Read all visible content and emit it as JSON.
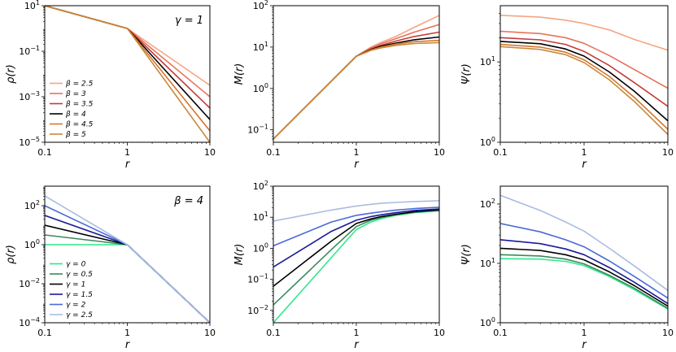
{
  "chart_data": [
    {
      "type": "line",
      "panel": "top-left",
      "xlabel": "r",
      "ylabel": "ρ(r)",
      "xscale": "log",
      "yscale": "log",
      "xlim": [
        0.1,
        10
      ],
      "ylim": [
        1e-05,
        10
      ],
      "xticks": [
        {
          "v": 0.1,
          "label": "0.1"
        },
        {
          "v": 1,
          "label": "1"
        },
        {
          "v": 10,
          "label": "10"
        }
      ],
      "yticks": [
        {
          "v": 1e-05,
          "base": "10",
          "exp": "−5"
        },
        {
          "v": 0.001,
          "base": "10",
          "exp": "−3"
        },
        {
          "v": 0.1,
          "base": "10",
          "exp": "−1"
        },
        {
          "v": 10,
          "base": "10",
          "exp": "1"
        }
      ],
      "annotation": "γ = 1",
      "legend_position": "lower-left",
      "series": [
        {
          "name": "β = 2.5",
          "color": "#f4a582",
          "x": [
            0.1,
            1,
            10
          ],
          "y": [
            10,
            1,
            0.0032
          ]
        },
        {
          "name": "β = 3",
          "color": "#e8735a",
          "x": [
            0.1,
            1,
            10
          ],
          "y": [
            10,
            1,
            0.001
          ]
        },
        {
          "name": "β = 3.5",
          "color": "#c43c3c",
          "x": [
            0.1,
            1,
            10
          ],
          "y": [
            10,
            1,
            0.00032
          ]
        },
        {
          "name": "β = 4",
          "color": "#000000",
          "x": [
            0.1,
            1,
            10
          ],
          "y": [
            10,
            1,
            0.0001
          ]
        },
        {
          "name": "β = 4.5",
          "color": "#d4762c",
          "x": [
            0.1,
            1,
            10
          ],
          "y": [
            10,
            1,
            3.2e-05
          ]
        },
        {
          "name": "β = 5",
          "color": "#c8893c",
          "x": [
            0.1,
            1,
            10
          ],
          "y": [
            10,
            1,
            1e-05
          ]
        }
      ]
    },
    {
      "type": "line",
      "panel": "top-middle",
      "xlabel": "r",
      "ylabel": "M(r)",
      "xscale": "log",
      "yscale": "log",
      "xlim": [
        0.1,
        10
      ],
      "ylim": [
        0.05,
        100
      ],
      "xticks": [
        {
          "v": 0.1,
          "label": "0.1"
        },
        {
          "v": 1,
          "label": "1"
        },
        {
          "v": 10,
          "label": "10"
        }
      ],
      "yticks": [
        {
          "v": 0.1,
          "base": "10",
          "exp": "−1"
        },
        {
          "v": 1,
          "base": "10",
          "exp": "0"
        },
        {
          "v": 10,
          "base": "10",
          "exp": "1"
        },
        {
          "v": 100,
          "base": "10",
          "exp": "2"
        }
      ],
      "series": [
        {
          "name": "β = 2.5",
          "color": "#f4a582",
          "x": [
            0.1,
            0.5,
            1,
            1.5,
            2,
            3,
            5,
            10
          ],
          "y": [
            0.06,
            1.5,
            6.0,
            10.0,
            13.0,
            18.0,
            30.0,
            58.0
          ]
        },
        {
          "name": "β = 3",
          "color": "#e8735a",
          "x": [
            0.1,
            0.5,
            1,
            1.5,
            2,
            3,
            5,
            10
          ],
          "y": [
            0.06,
            1.5,
            6.0,
            9.5,
            12.0,
            16.0,
            23.0,
            35.0
          ]
        },
        {
          "name": "β = 3.5",
          "color": "#c43c3c",
          "x": [
            0.1,
            0.5,
            1,
            1.5,
            2,
            3,
            5,
            10
          ],
          "y": [
            0.06,
            1.5,
            6.0,
            9.0,
            11.0,
            14.0,
            18.0,
            23.0
          ]
        },
        {
          "name": "β = 4",
          "color": "#000000",
          "x": [
            0.1,
            0.5,
            1,
            1.5,
            2,
            3,
            5,
            10
          ],
          "y": [
            0.06,
            1.5,
            6.0,
            8.7,
            10.5,
            12.5,
            15.0,
            17.5
          ]
        },
        {
          "name": "β = 4.5",
          "color": "#d4762c",
          "x": [
            0.1,
            0.5,
            1,
            1.5,
            2,
            3,
            5,
            10
          ],
          "y": [
            0.06,
            1.5,
            6.0,
            8.5,
            10.0,
            11.8,
            13.5,
            14.5
          ]
        },
        {
          "name": "β = 5",
          "color": "#c8893c",
          "x": [
            0.1,
            0.5,
            1,
            1.5,
            2,
            3,
            5,
            10
          ],
          "y": [
            0.06,
            1.5,
            6.0,
            8.3,
            9.6,
            11.0,
            12.2,
            12.8
          ]
        }
      ]
    },
    {
      "type": "line",
      "panel": "top-right",
      "xlabel": "r",
      "ylabel": "Ψ(r)",
      "xscale": "log",
      "yscale": "log",
      "xlim": [
        0.1,
        10
      ],
      "ylim": [
        1,
        50
      ],
      "xticks": [
        {
          "v": 0.1,
          "label": "0.1"
        },
        {
          "v": 1,
          "label": "1"
        },
        {
          "v": 10,
          "label": "10"
        }
      ],
      "yticks": [
        {
          "v": 1,
          "base": "10",
          "exp": "0"
        },
        {
          "v": 10,
          "base": "10",
          "exp": "1"
        }
      ],
      "series": [
        {
          "name": "β = 2.5",
          "color": "#f4a582",
          "x": [
            0.1,
            0.3,
            0.6,
            1,
            2,
            4,
            10
          ],
          "y": [
            38,
            36,
            33,
            30,
            25,
            19,
            14
          ]
        },
        {
          "name": "β = 3",
          "color": "#e8735a",
          "x": [
            0.1,
            0.3,
            0.6,
            1,
            2,
            4,
            10
          ],
          "y": [
            24,
            22.5,
            20,
            17,
            12,
            8,
            4.7
          ]
        },
        {
          "name": "β = 3.5",
          "color": "#c43c3c",
          "x": [
            0.1,
            0.3,
            0.6,
            1,
            2,
            4,
            10
          ],
          "y": [
            20,
            18.8,
            16.5,
            13.5,
            9,
            5.5,
            2.8
          ]
        },
        {
          "name": "β = 4",
          "color": "#000000",
          "x": [
            0.1,
            0.3,
            0.6,
            1,
            2,
            4,
            10
          ],
          "y": [
            18,
            16.8,
            14.5,
            11.8,
            7.5,
            4.3,
            1.85
          ]
        },
        {
          "name": "β = 4.5",
          "color": "#d4762c",
          "x": [
            0.1,
            0.3,
            0.6,
            1,
            2,
            4,
            10
          ],
          "y": [
            16.5,
            15.3,
            13.2,
            10.6,
            6.6,
            3.6,
            1.45
          ]
        },
        {
          "name": "β = 5",
          "color": "#c8893c",
          "x": [
            0.1,
            0.3,
            0.6,
            1,
            2,
            4,
            10
          ],
          "y": [
            15.5,
            14.3,
            12.3,
            9.8,
            6.0,
            3.2,
            1.25
          ]
        }
      ]
    },
    {
      "type": "line",
      "panel": "bottom-left",
      "xlabel": "r",
      "ylabel": "ρ(r)",
      "xscale": "log",
      "yscale": "log",
      "xlim": [
        0.1,
        10
      ],
      "ylim": [
        0.0001,
        1000
      ],
      "xticks": [
        {
          "v": 0.1,
          "label": "0.1"
        },
        {
          "v": 1,
          "label": "1"
        },
        {
          "v": 10,
          "label": "10"
        }
      ],
      "yticks": [
        {
          "v": 0.0001,
          "base": "10",
          "exp": "−4"
        },
        {
          "v": 0.01,
          "base": "10",
          "exp": "−2"
        },
        {
          "v": 1,
          "base": "10",
          "exp": "0"
        },
        {
          "v": 100,
          "base": "10",
          "exp": "2"
        }
      ],
      "annotation": "β = 4",
      "legend_position": "lower-left",
      "series": [
        {
          "name": "γ = 0",
          "color": "#2ee88a",
          "x": [
            0.1,
            1,
            10
          ],
          "y": [
            1,
            1,
            0.0001
          ]
        },
        {
          "name": "γ = 0.5",
          "color": "#3a8a5a",
          "x": [
            0.1,
            1,
            10
          ],
          "y": [
            3.16,
            1,
            0.0001
          ]
        },
        {
          "name": "γ = 1",
          "color": "#000000",
          "x": [
            0.1,
            1,
            10
          ],
          "y": [
            10,
            1,
            0.0001
          ]
        },
        {
          "name": "γ = 1.5",
          "color": "#1a1a9a",
          "x": [
            0.1,
            1,
            10
          ],
          "y": [
            31.6,
            1,
            0.0001
          ]
        },
        {
          "name": "γ = 2",
          "color": "#4a6ad8",
          "x": [
            0.1,
            1,
            10
          ],
          "y": [
            100,
            1,
            0.0001
          ]
        },
        {
          "name": "γ = 2.5",
          "color": "#aabce0",
          "x": [
            0.1,
            1,
            10
          ],
          "y": [
            316,
            1,
            0.0001
          ]
        }
      ]
    },
    {
      "type": "line",
      "panel": "bottom-middle",
      "xlabel": "r",
      "ylabel": "M(r)",
      "xscale": "log",
      "yscale": "log",
      "xlim": [
        0.1,
        10
      ],
      "ylim": [
        0.004,
        100
      ],
      "xticks": [
        {
          "v": 0.1,
          "label": "0.1"
        },
        {
          "v": 1,
          "label": "1"
        },
        {
          "v": 10,
          "label": "10"
        }
      ],
      "yticks": [
        {
          "v": 0.01,
          "base": "10",
          "exp": "−2"
        },
        {
          "v": 0.1,
          "base": "10",
          "exp": "−1"
        },
        {
          "v": 1,
          "base": "10",
          "exp": "0"
        },
        {
          "v": 10,
          "base": "10",
          "exp": "1"
        },
        {
          "v": 100,
          "base": "10",
          "exp": "2"
        }
      ],
      "series": [
        {
          "name": "γ = 0",
          "color": "#2ee88a",
          "x": [
            0.1,
            0.5,
            1,
            1.5,
            2,
            3,
            5,
            10
          ],
          "y": [
            0.004,
            0.5,
            4.0,
            7.0,
            9.0,
            11.5,
            14.0,
            16.0
          ]
        },
        {
          "name": "γ = 0.5",
          "color": "#3a8a5a",
          "x": [
            0.1,
            0.5,
            1,
            1.5,
            2,
            3,
            5,
            10
          ],
          "y": [
            0.015,
            0.9,
            5.0,
            8.0,
            9.8,
            12.0,
            14.5,
            16.5
          ]
        },
        {
          "name": "γ = 1",
          "color": "#000000",
          "x": [
            0.1,
            0.5,
            1,
            1.5,
            2,
            3,
            5,
            10
          ],
          "y": [
            0.06,
            1.7,
            6.3,
            8.8,
            10.5,
            12.5,
            15.0,
            17.5
          ]
        },
        {
          "name": "γ = 1.5",
          "color": "#1a1a9a",
          "x": [
            0.1,
            0.5,
            1,
            1.5,
            2,
            3,
            5,
            10
          ],
          "y": [
            0.25,
            3.5,
            8.0,
            10.5,
            12.0,
            14.0,
            16.5,
            18.5
          ]
        },
        {
          "name": "γ = 2",
          "color": "#4a6ad8",
          "x": [
            0.1,
            0.5,
            1,
            1.5,
            2,
            3,
            5,
            10
          ],
          "y": [
            1.2,
            7.0,
            11.5,
            13.5,
            15.0,
            17.0,
            19.0,
            21.0
          ]
        },
        {
          "name": "γ = 2.5",
          "color": "#aabce0",
          "x": [
            0.1,
            0.5,
            1,
            1.5,
            2,
            3,
            5,
            10
          ],
          "y": [
            7.5,
            17.0,
            23.0,
            26.0,
            28.0,
            30.0,
            32.0,
            34.0
          ]
        }
      ]
    },
    {
      "type": "line",
      "panel": "bottom-right",
      "xlabel": "r",
      "ylabel": "Ψ(r)",
      "xscale": "log",
      "yscale": "log",
      "xlim": [
        0.1,
        10
      ],
      "ylim": [
        1,
        200
      ],
      "xticks": [
        {
          "v": 0.1,
          "label": "0.1"
        },
        {
          "v": 1,
          "label": "1"
        },
        {
          "v": 10,
          "label": "10"
        }
      ],
      "yticks": [
        {
          "v": 1,
          "base": "10",
          "exp": "0"
        },
        {
          "v": 10,
          "base": "10",
          "exp": "1"
        },
        {
          "v": 100,
          "base": "10",
          "exp": "2"
        }
      ],
      "series": [
        {
          "name": "γ = 0",
          "color": "#2ee88a",
          "x": [
            0.1,
            0.3,
            0.6,
            1,
            2,
            4,
            10
          ],
          "y": [
            12,
            11.8,
            10.8,
            9.2,
            6.0,
            3.6,
            1.7
          ]
        },
        {
          "name": "γ = 0.5",
          "color": "#3a8a5a",
          "x": [
            0.1,
            0.3,
            0.6,
            1,
            2,
            4,
            10
          ],
          "y": [
            14,
            13.3,
            11.8,
            9.8,
            6.3,
            3.8,
            1.75
          ]
        },
        {
          "name": "γ = 1",
          "color": "#000000",
          "x": [
            0.1,
            0.3,
            0.6,
            1,
            2,
            4,
            10
          ],
          "y": [
            18,
            16.5,
            14,
            11.5,
            7.2,
            4.2,
            1.9
          ]
        },
        {
          "name": "γ = 1.5",
          "color": "#1a1a9a",
          "x": [
            0.1,
            0.3,
            0.6,
            1,
            2,
            4,
            10
          ],
          "y": [
            25,
            21.5,
            17.5,
            14,
            8.5,
            4.8,
            2.1
          ]
        },
        {
          "name": "γ = 2",
          "color": "#4a6ad8",
          "x": [
            0.1,
            0.3,
            0.6,
            1,
            2,
            4,
            10
          ],
          "y": [
            47,
            34,
            25,
            19,
            11,
            6,
            2.6
          ]
        },
        {
          "name": "γ = 2.5",
          "color": "#aabce0",
          "x": [
            0.1,
            0.3,
            0.6,
            1,
            2,
            4,
            10
          ],
          "y": [
            140,
            78,
            50,
            35,
            18,
            9,
            3.5
          ]
        }
      ]
    }
  ]
}
